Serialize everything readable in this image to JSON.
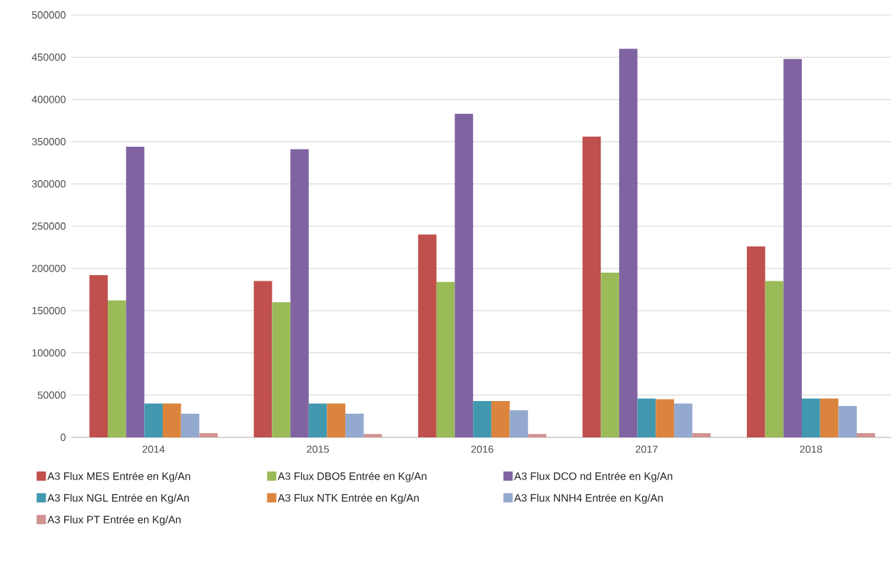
{
  "chart_data": {
    "type": "bar",
    "categories": [
      "2014",
      "2015",
      "2016",
      "2017",
      "2018"
    ],
    "series": [
      {
        "name": "A3 Flux MES  Entrée en Kg/An",
        "color": "#c0504d",
        "values": [
          192000,
          185000,
          240000,
          356000,
          226000
        ]
      },
      {
        "name": "A3 Flux DBO5  Entrée en Kg/An",
        "color": "#9bbb59",
        "values": [
          162000,
          160000,
          184000,
          195000,
          185000
        ]
      },
      {
        "name": "A3  Flux DCO nd  Entrée en Kg/An",
        "color": "#8064a2",
        "values": [
          344000,
          341000,
          383000,
          460000,
          448000
        ]
      },
      {
        "name": "A3 Flux NGL  Entrée en Kg/An",
        "color": "#4198af",
        "values": [
          40000,
          40000,
          43000,
          46000,
          46000
        ]
      },
      {
        "name": "A3 Flux NTK  Entrée en Kg/An",
        "color": "#db843d",
        "values": [
          40000,
          40000,
          43000,
          45000,
          46000
        ]
      },
      {
        "name": "A3 Flux NNH4  Entrée en Kg/An",
        "color": "#93a9cf",
        "values": [
          28000,
          28000,
          32000,
          40000,
          37000
        ]
      },
      {
        "name": "A3 Flux PT  Entrée en Kg/An",
        "color": "#d19392",
        "values": [
          5000,
          4000,
          4000,
          5000,
          5000
        ]
      }
    ],
    "ylim": [
      0,
      500000
    ],
    "yticks": [
      0,
      50000,
      100000,
      150000,
      200000,
      250000,
      300000,
      350000,
      400000,
      450000,
      500000
    ],
    "grid": "y",
    "legend": "bottom"
  }
}
